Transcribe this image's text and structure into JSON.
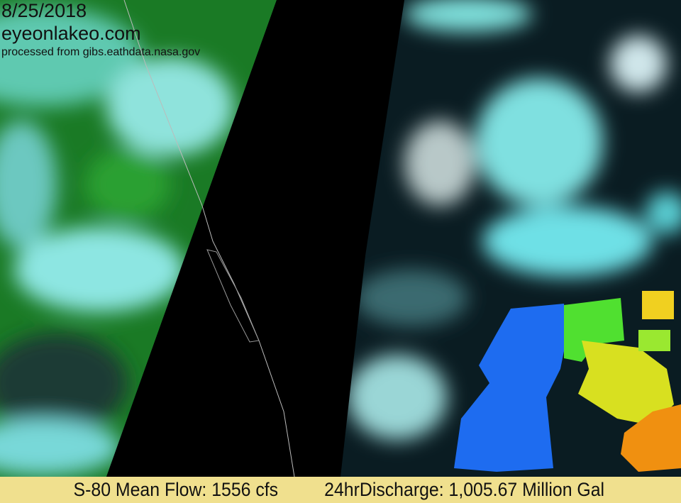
{
  "overlay": {
    "date": "8/25/2018",
    "site": "eyeonlakeo.com",
    "source": "processed from gibs.eathdata.nasa.gov"
  },
  "footer": {
    "mean_flow": "S-80 Mean Flow: 1556 cfs",
    "discharge": "24hrDischarge: 1,005.67 Million Gal"
  },
  "colors": {
    "land": "#1e8a22",
    "cloud": "#7fe8e6",
    "swath_gap": "#000000",
    "footer_bg": "#f0e08e",
    "bloom_blue": "#1e6cf0",
    "bloom_green": "#60e020",
    "bloom_yellow": "#e8e020",
    "bloom_orange": "#f09010"
  }
}
